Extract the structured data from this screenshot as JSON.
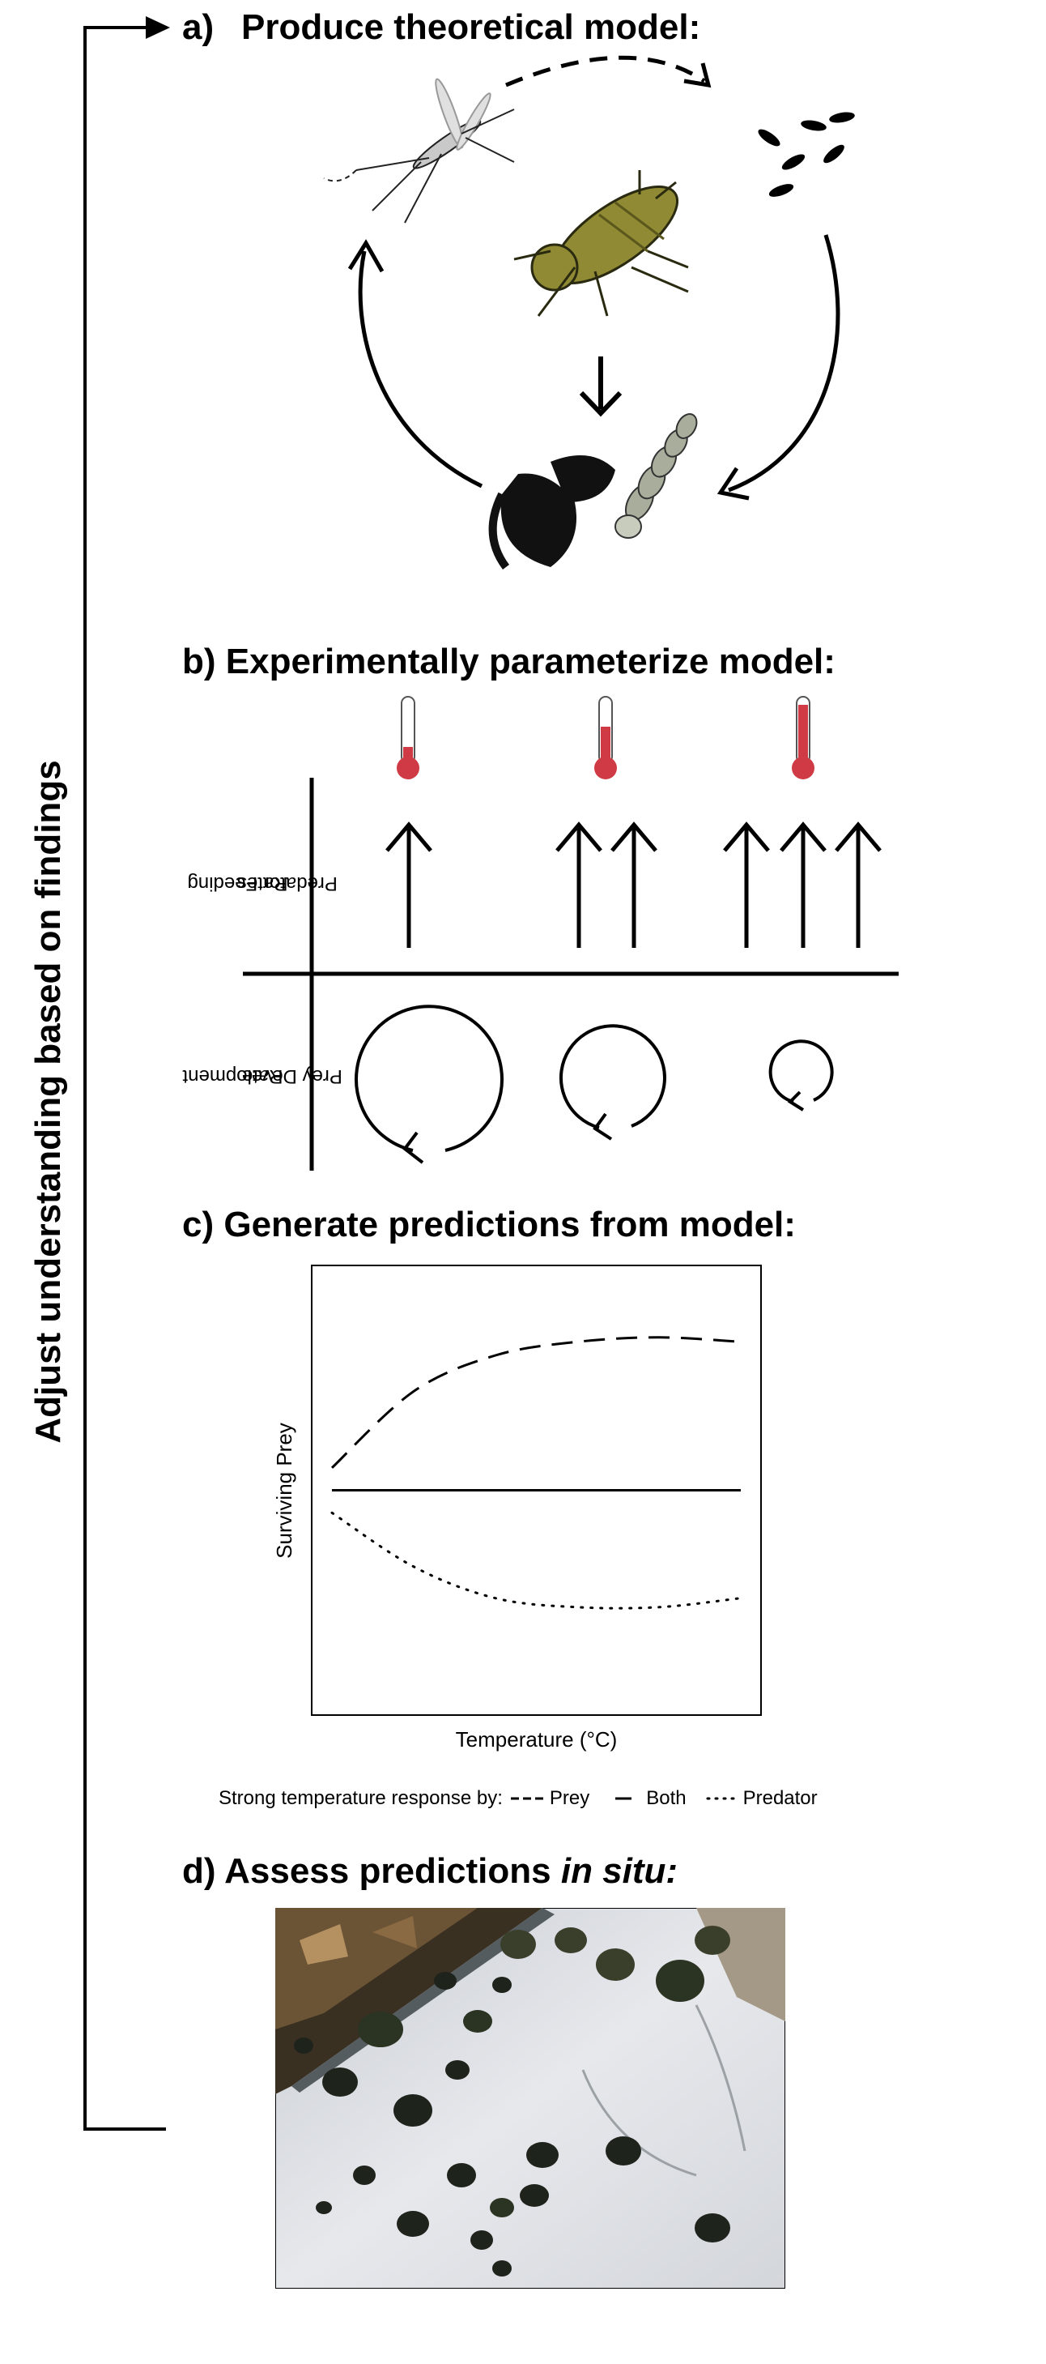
{
  "side_label": "Adjust understanding based on findings",
  "panel_a": {
    "letter": "a)",
    "title": "Produce theoretical model:"
  },
  "panel_b": {
    "title": "b) Experimentally parameterize model:",
    "row1_label": [
      "Predator Feeding",
      "Rates"
    ],
    "row2_label": [
      "Prey Development",
      "Rate"
    ],
    "levels": [
      {
        "thermometer_fill": 0.2,
        "arrows": 1,
        "circle": "large"
      },
      {
        "thermometer_fill": 0.55,
        "arrows": 2,
        "circle": "medium"
      },
      {
        "thermometer_fill": 0.9,
        "arrows": 3,
        "circle": "small"
      }
    ],
    "thermometer_color": "#cf3a44"
  },
  "panel_c": {
    "title": "c) Generate predictions from model:"
  },
  "chart_data": {
    "type": "line",
    "xlabel": "Temperature (°C)",
    "ylabel": "Surviving Prey",
    "grid": false,
    "series": [
      {
        "name": "Prey",
        "style": "dashed",
        "values": [
          0.55,
          0.72,
          0.8,
          0.83,
          0.84,
          0.83
        ]
      },
      {
        "name": "Both",
        "style": "solid",
        "values": [
          0.5,
          0.5,
          0.5,
          0.5,
          0.5,
          0.5
        ]
      },
      {
        "name": "Predator",
        "style": "dotted",
        "values": [
          0.45,
          0.33,
          0.26,
          0.24,
          0.24,
          0.26
        ]
      }
    ],
    "legend_prefix": "Strong temperature response by:"
  },
  "panel_d": {
    "title_prefix": "d) Assess predictions ",
    "title_italic": "in situ:"
  },
  "colors": {
    "insect_olive": "#8f8a33",
    "rock": "#dfe2e6",
    "pool": "#1e231c"
  }
}
